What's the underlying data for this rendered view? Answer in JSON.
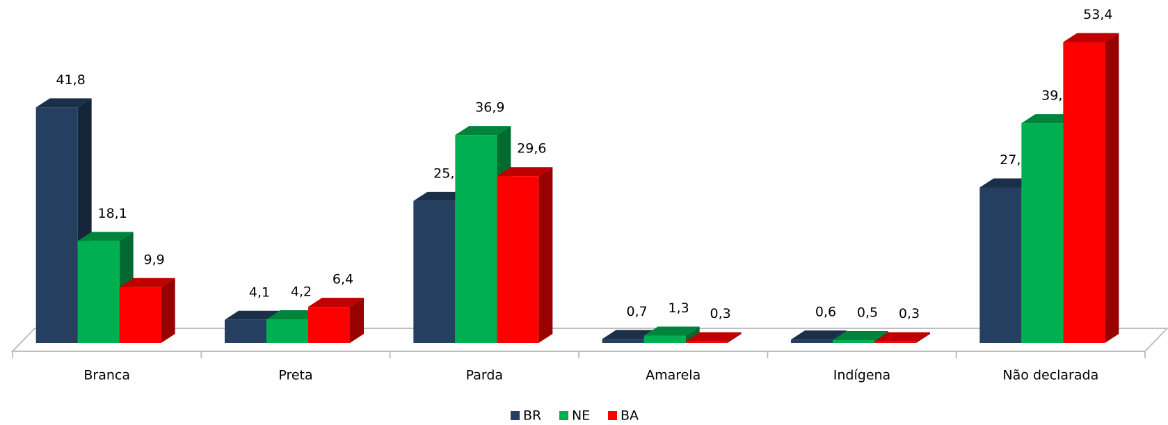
{
  "chart_data": {
    "type": "bar3d",
    "categories": [
      "Branca",
      "Preta",
      "Parda",
      "Amarela",
      "Indígena",
      "Não declarada"
    ],
    "series": [
      {
        "name": "BR",
        "color": "#243f60",
        "values": [
          41.8,
          4.1,
          25.2,
          0.7,
          0.6,
          27.6
        ],
        "value_labels": [
          "41,8",
          "4,1",
          "25,2",
          "0,7",
          "0,6",
          "27,6"
        ]
      },
      {
        "name": "NE",
        "color": "#00b050",
        "values": [
          18.1,
          4.2,
          36.9,
          1.3,
          0.5,
          39.0
        ],
        "value_labels": [
          "18,1",
          "4,2",
          "36,9",
          "1,3",
          "0,5",
          "39,0"
        ]
      },
      {
        "name": "BA",
        "color": "#ff0000",
        "values": [
          9.9,
          6.4,
          29.6,
          0.3,
          0.3,
          53.4
        ],
        "value_labels": [
          "9,9",
          "6,4",
          "29,6",
          "0,3",
          "0,3",
          "53,4"
        ]
      }
    ],
    "legend": "bottom"
  }
}
